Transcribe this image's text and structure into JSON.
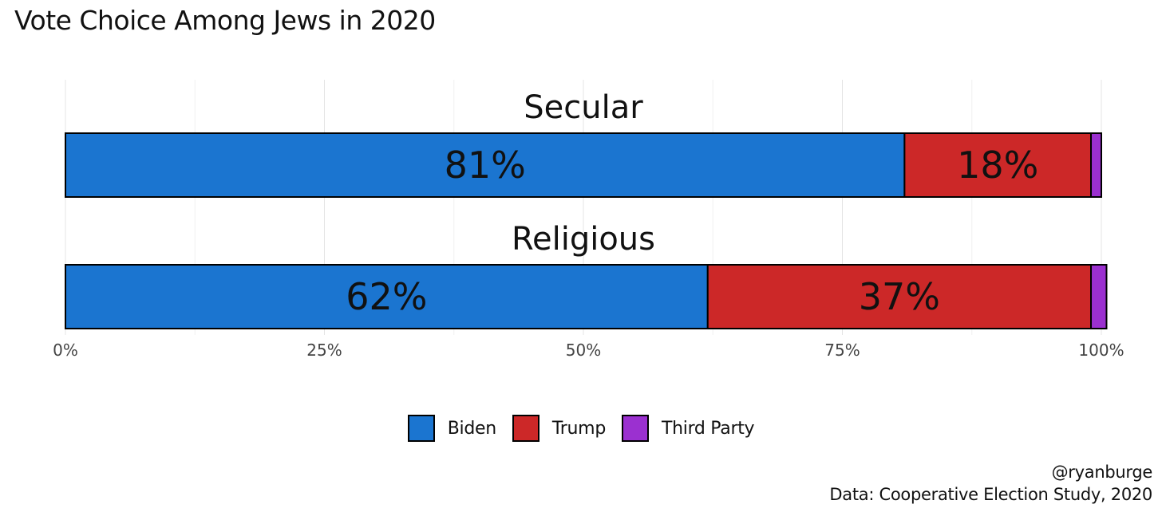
{
  "chart_data": {
    "type": "bar",
    "orientation": "horizontal",
    "stacked": true,
    "title": "Vote Choice Among Jews in 2020",
    "categories": [
      "Secular",
      "Religious"
    ],
    "series": [
      {
        "name": "Biden",
        "color": "#1B75D0",
        "values": [
          81,
          62
        ],
        "labels": [
          "81%",
          "62%"
        ]
      },
      {
        "name": "Trump",
        "color": "#CC2828",
        "values": [
          18,
          37
        ],
        "labels": [
          "18%",
          "37%"
        ]
      },
      {
        "name": "Third Party",
        "color": "#9B30D0",
        "values": [
          1,
          1.5
        ],
        "labels": [
          "",
          ""
        ]
      }
    ],
    "xlim": [
      0,
      100
    ],
    "xticks": [
      0,
      25,
      50,
      75,
      100
    ],
    "xtick_labels": [
      "0%",
      "25%",
      "50%",
      "75%",
      "100%"
    ],
    "legend_position": "bottom",
    "grid": true
  },
  "credits": {
    "author": "@ryanburge",
    "source": "Data: Cooperative Election Study, 2020"
  }
}
